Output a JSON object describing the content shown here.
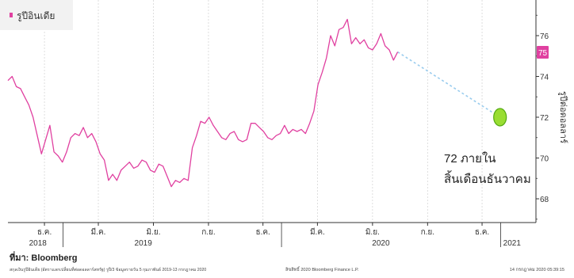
{
  "chart_data": {
    "type": "line",
    "legend": {
      "label": "รูปีอินเดีย",
      "placement": "top-left"
    },
    "ylabel": "รูปีต่อดอลลาร์",
    "ylim": [
      67.2,
      77.2
    ],
    "yticks": [
      68,
      70,
      72,
      74,
      76
    ],
    "y_tick_labels": [
      "68",
      "70",
      "72",
      "74",
      "76"
    ],
    "x_tick_labels": [
      "ธ.ค.",
      "มี.ค.",
      "มิ.ย.",
      "ก.ย.",
      "ธ.ค.",
      "มี.ค.",
      "มิ.ย.",
      "ก.ย.",
      "ธ.ค."
    ],
    "year_labels": [
      "2018",
      "2019",
      "2020",
      "2021"
    ],
    "series": [
      {
        "name": "รูปีอินเดีย",
        "color": "#e040a0",
        "points": [
          [
            "2018-10-01",
            73.8
          ],
          [
            "2018-10-08",
            74.0
          ],
          [
            "2018-10-15",
            73.5
          ],
          [
            "2018-10-22",
            73.4
          ],
          [
            "2018-10-29",
            73.0
          ],
          [
            "2018-11-05",
            72.6
          ],
          [
            "2018-11-12",
            72.0
          ],
          [
            "2018-11-19",
            71.1
          ],
          [
            "2018-11-26",
            70.2
          ],
          [
            "2018-12-03",
            70.9
          ],
          [
            "2018-12-10",
            71.6
          ],
          [
            "2018-12-17",
            70.3
          ],
          [
            "2018-12-24",
            70.1
          ],
          [
            "2018-12-31",
            69.8
          ],
          [
            "2019-01-07",
            70.3
          ],
          [
            "2019-01-14",
            71.0
          ],
          [
            "2019-01-21",
            71.2
          ],
          [
            "2019-01-28",
            71.1
          ],
          [
            "2019-02-04",
            71.5
          ],
          [
            "2019-02-11",
            71.0
          ],
          [
            "2019-02-18",
            71.2
          ],
          [
            "2019-02-25",
            70.8
          ],
          [
            "2019-03-04",
            70.2
          ],
          [
            "2019-03-11",
            69.9
          ],
          [
            "2019-03-18",
            68.9
          ],
          [
            "2019-03-25",
            69.2
          ],
          [
            "2019-04-01",
            68.9
          ],
          [
            "2019-04-08",
            69.4
          ],
          [
            "2019-04-15",
            69.6
          ],
          [
            "2019-04-22",
            69.8
          ],
          [
            "2019-04-29",
            69.5
          ],
          [
            "2019-05-06",
            69.6
          ],
          [
            "2019-05-13",
            69.9
          ],
          [
            "2019-05-20",
            69.8
          ],
          [
            "2019-05-27",
            69.4
          ],
          [
            "2019-06-03",
            69.3
          ],
          [
            "2019-06-10",
            69.7
          ],
          [
            "2019-06-17",
            69.6
          ],
          [
            "2019-06-24",
            69.1
          ],
          [
            "2019-07-01",
            68.6
          ],
          [
            "2019-07-08",
            68.9
          ],
          [
            "2019-07-15",
            68.8
          ],
          [
            "2019-07-22",
            69.0
          ],
          [
            "2019-07-29",
            68.9
          ],
          [
            "2019-08-05",
            70.5
          ],
          [
            "2019-08-12",
            71.1
          ],
          [
            "2019-08-19",
            71.8
          ],
          [
            "2019-08-26",
            71.7
          ],
          [
            "2019-09-02",
            72.0
          ],
          [
            "2019-09-09",
            71.6
          ],
          [
            "2019-09-16",
            71.3
          ],
          [
            "2019-09-23",
            71.0
          ],
          [
            "2019-09-30",
            70.9
          ],
          [
            "2019-10-07",
            71.2
          ],
          [
            "2019-10-14",
            71.3
          ],
          [
            "2019-10-21",
            70.9
          ],
          [
            "2019-10-28",
            70.8
          ],
          [
            "2019-11-04",
            70.9
          ],
          [
            "2019-11-11",
            71.7
          ],
          [
            "2019-11-18",
            71.7
          ],
          [
            "2019-11-25",
            71.5
          ],
          [
            "2019-12-02",
            71.3
          ],
          [
            "2019-12-09",
            71.0
          ],
          [
            "2019-12-16",
            70.9
          ],
          [
            "2019-12-23",
            71.1
          ],
          [
            "2019-12-30",
            71.2
          ],
          [
            "2020-01-06",
            71.6
          ],
          [
            "2020-01-13",
            71.2
          ],
          [
            "2020-01-20",
            71.4
          ],
          [
            "2020-01-27",
            71.3
          ],
          [
            "2020-02-03",
            71.4
          ],
          [
            "2020-02-10",
            71.2
          ],
          [
            "2020-02-17",
            71.7
          ],
          [
            "2020-02-24",
            72.3
          ],
          [
            "2020-03-02",
            73.6
          ],
          [
            "2020-03-09",
            74.2
          ],
          [
            "2020-03-16",
            74.9
          ],
          [
            "2020-03-23",
            76.0
          ],
          [
            "2020-03-30",
            75.5
          ],
          [
            "2020-04-06",
            76.3
          ],
          [
            "2020-04-13",
            76.4
          ],
          [
            "2020-04-20",
            76.8
          ],
          [
            "2020-04-27",
            75.6
          ],
          [
            "2020-05-04",
            75.9
          ],
          [
            "2020-05-11",
            75.6
          ],
          [
            "2020-05-18",
            75.8
          ],
          [
            "2020-05-25",
            75.4
          ],
          [
            "2020-06-01",
            75.3
          ],
          [
            "2020-06-08",
            75.6
          ],
          [
            "2020-06-15",
            76.1
          ],
          [
            "2020-06-22",
            75.5
          ],
          [
            "2020-06-29",
            75.3
          ],
          [
            "2020-07-06",
            74.8
          ],
          [
            "2020-07-13",
            75.2
          ]
        ]
      },
      {
        "name": "forecast",
        "color": "#99ccee",
        "dashed": true,
        "points": [
          [
            "2020-07-13",
            75.2
          ],
          [
            "2020-12-31",
            72.0
          ]
        ]
      }
    ],
    "current_value_label": "75",
    "forecast_marker": {
      "x": "2020-12-31",
      "y": 72.0,
      "color": "#99dd33"
    },
    "annotation": {
      "line1": "72 ภายใน",
      "line2": "สิ้นเดือนธันวาคม"
    },
    "grid": "vertical"
  },
  "footer": {
    "source": "ที่มา: Bloomberg",
    "note": "สกุลเงินรูปีอินเดีย (อัตราแลกเปลี่ยนที่ต่อดอลลาร์สหรัฐ) รูปี/3 ข้อมูลรายวัน 5 กุมภาพันธ์ 2019-13 กรกฎาคม 2020",
    "copyright": "ลิขสิทธิ์ 2020 Bloomberg Finance L.P.",
    "timestamp": "14 กรกฎาคม 2020 05:39:15"
  },
  "colors": {
    "line": "#e040a0",
    "forecast": "#99ccee",
    "marker_fill": "#99dd33",
    "marker_stroke": "#55aa11",
    "label_box": "#e040a0",
    "grid": "#d6d6d6",
    "axis": "#333333"
  }
}
